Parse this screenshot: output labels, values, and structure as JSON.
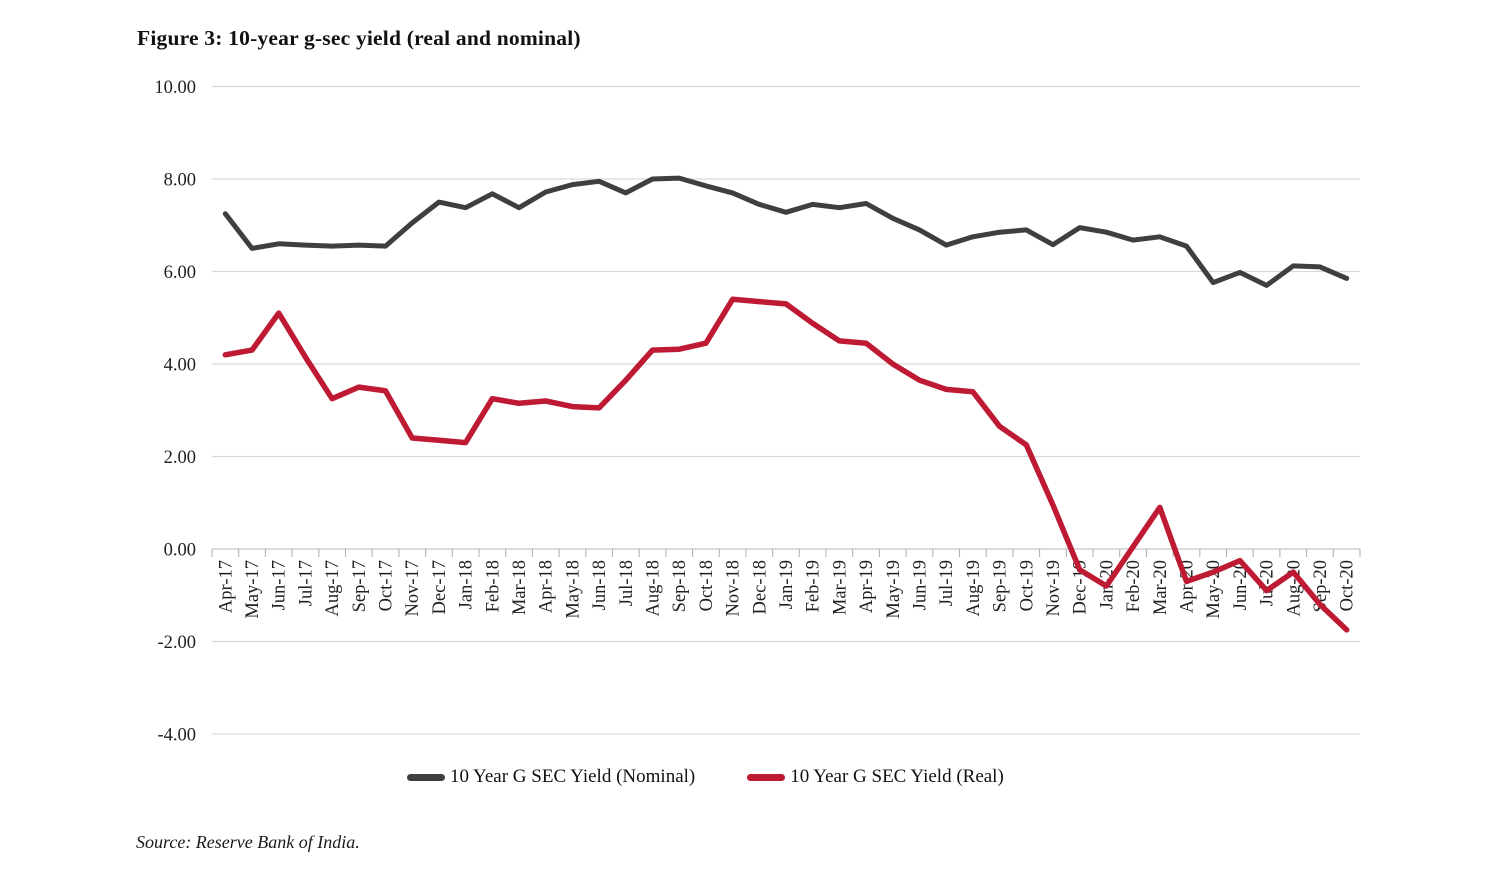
{
  "figure": {
    "title": "Figure 3: 10-year g-sec yield (real and nominal)",
    "source_note": "Source: Reserve Bank of India."
  },
  "colors": {
    "nominal_line": "#3f3f3f",
    "real_line": "#be1a33",
    "gridline": "#d9d9d9",
    "axis_line": "#c6c6c6",
    "tick": "#b3b3b3",
    "text": "#1f1f1f"
  },
  "chart_data": {
    "type": "line",
    "title": "Figure 3: 10-year g-sec yield (real and nominal)",
    "xlabel": "",
    "ylabel": "",
    "ylim": [
      -4,
      10
    ],
    "yticks": [
      10,
      8,
      6,
      4,
      2,
      0,
      -2,
      -4
    ],
    "ytick_labels": [
      "10.00",
      "8.00",
      "6.00",
      "4.00",
      "2.00",
      "0.00",
      "-2.00",
      "-4.00"
    ],
    "grid": true,
    "legend_position": "bottom",
    "x_label_rotation": 90,
    "categories": [
      "Apr-17",
      "May-17",
      "Jun-17",
      "Jul-17",
      "Aug-17",
      "Sep-17",
      "Oct-17",
      "Nov-17",
      "Dec-17",
      "Jan-18",
      "Feb-18",
      "Mar-18",
      "Apr-18",
      "May-18",
      "Jun-18",
      "Jul-18",
      "Aug-18",
      "Sep-18",
      "Oct-18",
      "Nov-18",
      "Dec-18",
      "Jan-19",
      "Feb-19",
      "Mar-19",
      "Apr-19",
      "May-19",
      "Jun-19",
      "Jul-19",
      "Aug-19",
      "Sep-19",
      "Oct-19",
      "Nov-19",
      "Dec-19",
      "Jan-20",
      "Feb-20",
      "Mar-20",
      "Apr-20",
      "May-20",
      "Jun-20",
      "Jul-20",
      "Aug-20",
      "Sep-20",
      "Oct-20"
    ],
    "series": [
      {
        "name": "10 Year G SEC Yield (Nominal)",
        "color": "#3f3f3f",
        "values": [
          7.25,
          6.5,
          6.6,
          6.57,
          6.55,
          6.57,
          6.55,
          7.05,
          7.5,
          7.38,
          7.68,
          7.38,
          7.72,
          7.88,
          7.95,
          7.7,
          8.0,
          8.02,
          7.85,
          7.7,
          7.45,
          7.28,
          7.45,
          7.38,
          7.47,
          7.15,
          6.9,
          6.57,
          6.75,
          6.85,
          6.9,
          6.58,
          6.95,
          6.85,
          6.68,
          6.75,
          6.55,
          5.76,
          5.98,
          5.7,
          6.12,
          6.1,
          5.85
        ]
      },
      {
        "name": "10 Year G SEC Yield (Real)",
        "color": "#be1a33",
        "values": [
          4.2,
          4.3,
          5.1,
          4.15,
          3.25,
          3.5,
          3.42,
          2.4,
          2.35,
          2.3,
          3.25,
          3.15,
          3.2,
          3.08,
          3.05,
          3.65,
          4.3,
          4.32,
          4.45,
          5.4,
          5.35,
          5.3,
          4.88,
          4.5,
          4.45,
          4.0,
          3.65,
          3.45,
          3.4,
          2.65,
          2.25,
          0.95,
          -0.45,
          -0.8,
          0.05,
          0.9,
          -0.7,
          -0.5,
          -0.25,
          -0.9,
          -0.5,
          -1.2,
          -1.75
        ]
      }
    ]
  }
}
